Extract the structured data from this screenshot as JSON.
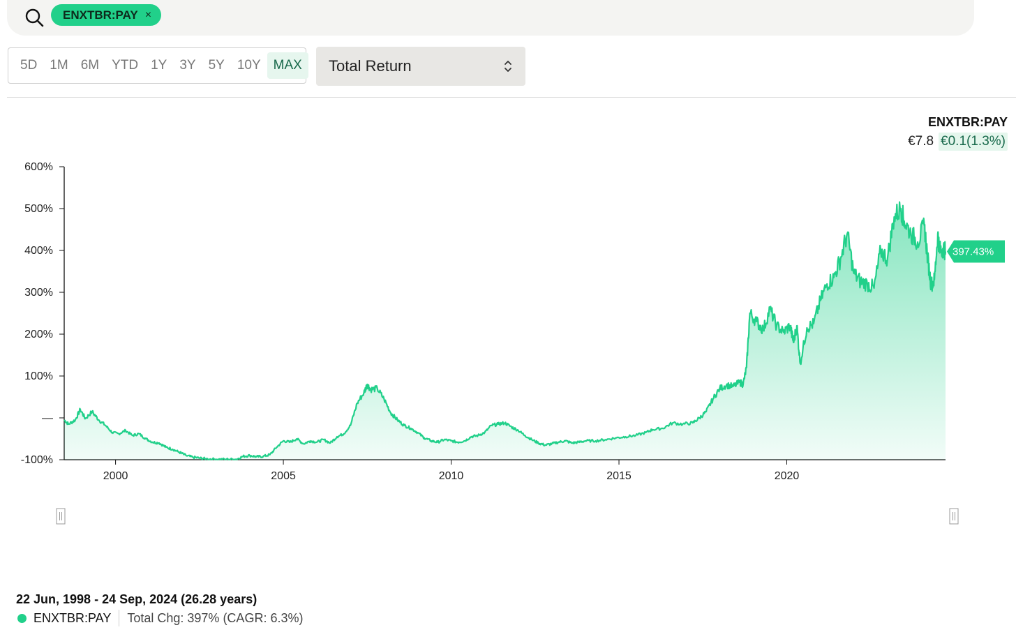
{
  "search": {
    "chip_label": "ENXTBR:PAY",
    "chip_close": "×"
  },
  "ranges": [
    {
      "label": "5D",
      "active": false
    },
    {
      "label": "1M",
      "active": false
    },
    {
      "label": "6M",
      "active": false
    },
    {
      "label": "YTD",
      "active": false
    },
    {
      "label": "1Y",
      "active": false
    },
    {
      "label": "3Y",
      "active": false
    },
    {
      "label": "5Y",
      "active": false
    },
    {
      "label": "10Y",
      "active": false
    },
    {
      "label": "MAX",
      "active": true
    }
  ],
  "metric_select": {
    "value": "Total Return"
  },
  "legend_top": {
    "ticker": "ENXTBR:PAY",
    "price": "€7.8",
    "change": "€0.1(1.3%)"
  },
  "footer": {
    "date_range": "22 Jun, 1998 - 24 Sep, 2024 (26.28 years)",
    "ticker": "ENXTBR:PAY",
    "total_change": "Total Chg: 397% (CAGR: 6.3%)"
  },
  "colors": {
    "line": "#21d08a",
    "fill": "#21d08a",
    "badge": "#21d08a",
    "active_range_bg": "#e6f6ee"
  },
  "chart_data": {
    "type": "area",
    "series": [
      {
        "name": "ENXTBR:PAY"
      }
    ],
    "x_start": 1998.47,
    "x_end": 2024.73,
    "xlim": [
      1998.47,
      2024.73
    ],
    "ylim": [
      -100,
      600
    ],
    "y_ticks": [
      {
        "value": 600,
        "label": "600%"
      },
      {
        "value": 500,
        "label": "500%"
      },
      {
        "value": 400,
        "label": "400%"
      },
      {
        "value": 300,
        "label": "300%"
      },
      {
        "value": 200,
        "label": "200%"
      },
      {
        "value": 100,
        "label": "100%"
      },
      {
        "value": 0,
        "label": "—"
      },
      {
        "value": -100,
        "label": "-100%"
      }
    ],
    "x_ticks": [
      {
        "value": 2000,
        "label": "2000"
      },
      {
        "value": 2005,
        "label": "2005"
      },
      {
        "value": 2010,
        "label": "2010"
      },
      {
        "value": 2015,
        "label": "2015"
      },
      {
        "value": 2020,
        "label": "2020"
      }
    ],
    "last_value_label": "397.43%",
    "last_value": 397.43,
    "points": [
      [
        1998.47,
        -5
      ],
      [
        1998.6,
        -15
      ],
      [
        1998.8,
        -5
      ],
      [
        1998.95,
        20
      ],
      [
        1999.1,
        -2
      ],
      [
        1999.3,
        15
      ],
      [
        1999.5,
        -5
      ],
      [
        1999.7,
        -18
      ],
      [
        1999.9,
        -35
      ],
      [
        2000.1,
        -38
      ],
      [
        2000.3,
        -30
      ],
      [
        2000.5,
        -42
      ],
      [
        2000.7,
        -38
      ],
      [
        2000.9,
        -50
      ],
      [
        2001.1,
        -58
      ],
      [
        2001.3,
        -60
      ],
      [
        2001.5,
        -70
      ],
      [
        2001.7,
        -75
      ],
      [
        2001.9,
        -82
      ],
      [
        2002.1,
        -90
      ],
      [
        2002.3,
        -94
      ],
      [
        2002.5,
        -96
      ],
      [
        2002.7,
        -98
      ],
      [
        2003.0,
        -99
      ],
      [
        2003.3,
        -99
      ],
      [
        2003.6,
        -99
      ],
      [
        2003.8,
        -92
      ],
      [
        2004.0,
        -90
      ],
      [
        2004.2,
        -93
      ],
      [
        2004.4,
        -92
      ],
      [
        2004.6,
        -88
      ],
      [
        2004.8,
        -70
      ],
      [
        2005.0,
        -55
      ],
      [
        2005.2,
        -58
      ],
      [
        2005.4,
        -50
      ],
      [
        2005.6,
        -62
      ],
      [
        2005.8,
        -55
      ],
      [
        2006.0,
        -58
      ],
      [
        2006.2,
        -52
      ],
      [
        2006.4,
        -60
      ],
      [
        2006.6,
        -45
      ],
      [
        2006.8,
        -38
      ],
      [
        2007.0,
        -18
      ],
      [
        2007.2,
        35
      ],
      [
        2007.4,
        60
      ],
      [
        2007.5,
        80
      ],
      [
        2007.6,
        68
      ],
      [
        2007.8,
        70
      ],
      [
        2008.0,
        45
      ],
      [
        2008.2,
        12
      ],
      [
        2008.4,
        -5
      ],
      [
        2008.6,
        -18
      ],
      [
        2008.8,
        -25
      ],
      [
        2009.0,
        -35
      ],
      [
        2009.2,
        -48
      ],
      [
        2009.4,
        -55
      ],
      [
        2009.6,
        -58
      ],
      [
        2009.8,
        -52
      ],
      [
        2010.0,
        -55
      ],
      [
        2010.2,
        -58
      ],
      [
        2010.4,
        -55
      ],
      [
        2010.6,
        -45
      ],
      [
        2010.8,
        -42
      ],
      [
        2011.0,
        -35
      ],
      [
        2011.2,
        -18
      ],
      [
        2011.4,
        -15
      ],
      [
        2011.6,
        -12
      ],
      [
        2011.8,
        -22
      ],
      [
        2012.0,
        -30
      ],
      [
        2012.2,
        -42
      ],
      [
        2012.4,
        -52
      ],
      [
        2012.6,
        -60
      ],
      [
        2012.8,
        -65
      ],
      [
        2013.0,
        -62
      ],
      [
        2013.2,
        -58
      ],
      [
        2013.4,
        -55
      ],
      [
        2013.6,
        -60
      ],
      [
        2013.8,
        -58
      ],
      [
        2014.0,
        -55
      ],
      [
        2014.3,
        -55
      ],
      [
        2014.6,
        -52
      ],
      [
        2014.9,
        -48
      ],
      [
        2015.2,
        -45
      ],
      [
        2015.5,
        -42
      ],
      [
        2015.8,
        -35
      ],
      [
        2016.0,
        -28
      ],
      [
        2016.3,
        -25
      ],
      [
        2016.6,
        -12
      ],
      [
        2016.9,
        -15
      ],
      [
        2017.2,
        -12
      ],
      [
        2017.4,
        0
      ],
      [
        2017.6,
        15
      ],
      [
        2017.8,
        45
      ],
      [
        2018.0,
        70
      ],
      [
        2018.2,
        78
      ],
      [
        2018.4,
        75
      ],
      [
        2018.6,
        85
      ],
      [
        2018.7,
        80
      ],
      [
        2018.8,
        120
      ],
      [
        2018.9,
        250
      ],
      [
        2019.1,
        230
      ],
      [
        2019.3,
        210
      ],
      [
        2019.5,
        260
      ],
      [
        2019.7,
        220
      ],
      [
        2019.9,
        205
      ],
      [
        2020.1,
        220
      ],
      [
        2020.2,
        180
      ],
      [
        2020.3,
        220
      ],
      [
        2020.4,
        130
      ],
      [
        2020.6,
        215
      ],
      [
        2020.8,
        225
      ],
      [
        2021.0,
        280
      ],
      [
        2021.2,
        320
      ],
      [
        2021.4,
        335
      ],
      [
        2021.6,
        380
      ],
      [
        2021.8,
        440
      ],
      [
        2022.0,
        345
      ],
      [
        2022.2,
        325
      ],
      [
        2022.4,
        320
      ],
      [
        2022.6,
        310
      ],
      [
        2022.8,
        400
      ],
      [
        2023.0,
        380
      ],
      [
        2023.2,
        480
      ],
      [
        2023.4,
        500
      ],
      [
        2023.5,
        470
      ],
      [
        2023.7,
        440
      ],
      [
        2023.9,
        420
      ],
      [
        2024.1,
        460
      ],
      [
        2024.2,
        380
      ],
      [
        2024.3,
        318
      ],
      [
        2024.4,
        330
      ],
      [
        2024.5,
        440
      ],
      [
        2024.55,
        400
      ],
      [
        2024.65,
        405
      ],
      [
        2024.73,
        397.43
      ]
    ]
  }
}
